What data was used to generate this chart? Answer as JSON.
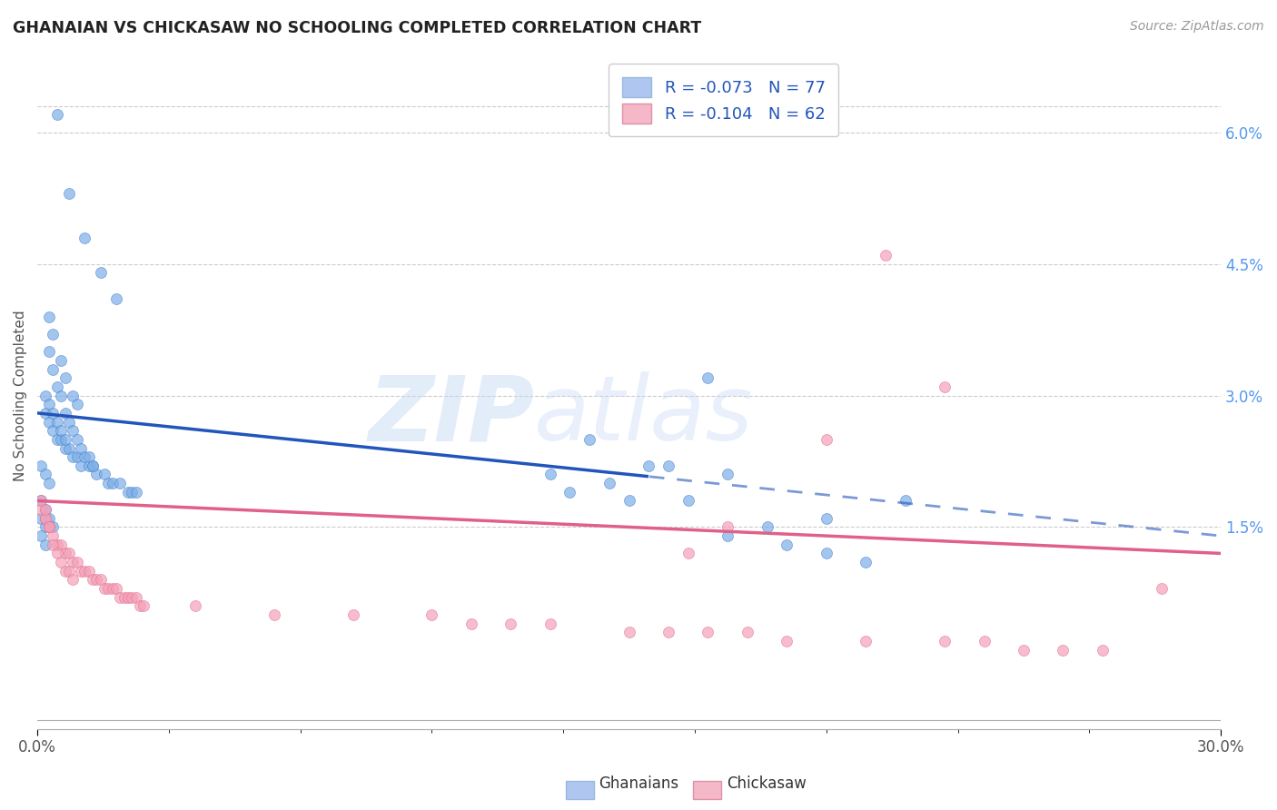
{
  "title": "GHANAIAN VS CHICKASAW NO SCHOOLING COMPLETED CORRELATION CHART",
  "source": "Source: ZipAtlas.com",
  "ylabel": "No Schooling Completed",
  "right_yticks": [
    "6.0%",
    "4.5%",
    "3.0%",
    "1.5%"
  ],
  "right_ytick_vals": [
    0.06,
    0.045,
    0.03,
    0.015
  ],
  "xmin": 0.0,
  "xmax": 0.3,
  "ymin": -0.008,
  "ymax": 0.068,
  "blue_line_start_y": 0.028,
  "blue_line_end_y": 0.014,
  "blue_line_solid_xmax": 0.155,
  "pink_line_start_y": 0.018,
  "pink_line_end_y": 0.012,
  "legend_label_blue": "R = -0.073   N = 77",
  "legend_label_pink": "R = -0.104   N = 62",
  "legend_label_blue_short": "R = -0.073",
  "legend_label_pink_short": "R = -0.104",
  "legend_N_blue": "N = 77",
  "legend_N_pink": "N = 62",
  "blue_color": "#7baee8",
  "blue_edge_color": "#4a80cc",
  "pink_color": "#f4a0b8",
  "pink_edge_color": "#e07090",
  "blue_line_color": "#2255bb",
  "pink_line_color": "#e0608a",
  "blue_patch_color": "#aec6f0",
  "pink_patch_color": "#f4b8c8",
  "scatter_alpha": 0.7,
  "scatter_size": 75,
  "background_color": "#ffffff",
  "grid_color": "#cccccc",
  "watermark_zip": "ZIP",
  "watermark_atlas": "atlas",
  "blue_scatter_x": [
    0.005,
    0.008,
    0.012,
    0.016,
    0.02,
    0.003,
    0.004,
    0.006,
    0.007,
    0.009,
    0.01,
    0.002,
    0.003,
    0.004,
    0.005,
    0.006,
    0.007,
    0.008,
    0.009,
    0.01,
    0.011,
    0.013,
    0.014,
    0.015,
    0.017,
    0.018,
    0.019,
    0.021,
    0.023,
    0.024,
    0.025,
    0.003,
    0.004,
    0.005,
    0.006,
    0.007,
    0.008,
    0.009,
    0.01,
    0.011,
    0.012,
    0.013,
    0.014,
    0.002,
    0.003,
    0.004,
    0.005,
    0.006,
    0.007,
    0.001,
    0.002,
    0.003,
    0.001,
    0.002,
    0.003,
    0.004,
    0.001,
    0.002,
    0.001,
    0.002,
    0.17,
    0.14,
    0.155,
    0.13,
    0.145,
    0.16,
    0.135,
    0.15,
    0.165,
    0.175,
    0.22,
    0.2,
    0.185,
    0.175,
    0.19,
    0.2,
    0.21
  ],
  "blue_scatter_y": [
    0.062,
    0.053,
    0.048,
    0.044,
    0.041,
    0.039,
    0.037,
    0.034,
    0.032,
    0.03,
    0.029,
    0.028,
    0.027,
    0.026,
    0.025,
    0.025,
    0.024,
    0.024,
    0.023,
    0.023,
    0.022,
    0.022,
    0.022,
    0.021,
    0.021,
    0.02,
    0.02,
    0.02,
    0.019,
    0.019,
    0.019,
    0.035,
    0.033,
    0.031,
    0.03,
    0.028,
    0.027,
    0.026,
    0.025,
    0.024,
    0.023,
    0.023,
    0.022,
    0.03,
    0.029,
    0.028,
    0.027,
    0.026,
    0.025,
    0.022,
    0.021,
    0.02,
    0.018,
    0.017,
    0.016,
    0.015,
    0.016,
    0.015,
    0.014,
    0.013,
    0.032,
    0.025,
    0.022,
    0.021,
    0.02,
    0.022,
    0.019,
    0.018,
    0.018,
    0.021,
    0.018,
    0.016,
    0.015,
    0.014,
    0.013,
    0.012,
    0.011
  ],
  "pink_scatter_x": [
    0.001,
    0.002,
    0.003,
    0.004,
    0.005,
    0.006,
    0.007,
    0.008,
    0.009,
    0.01,
    0.011,
    0.012,
    0.013,
    0.014,
    0.015,
    0.016,
    0.017,
    0.018,
    0.019,
    0.02,
    0.021,
    0.022,
    0.023,
    0.024,
    0.025,
    0.026,
    0.027,
    0.002,
    0.003,
    0.004,
    0.005,
    0.006,
    0.007,
    0.008,
    0.009,
    0.001,
    0.002,
    0.003,
    0.04,
    0.06,
    0.08,
    0.1,
    0.11,
    0.12,
    0.13,
    0.15,
    0.16,
    0.17,
    0.18,
    0.19,
    0.21,
    0.23,
    0.24,
    0.25,
    0.26,
    0.27,
    0.23,
    0.215,
    0.2,
    0.285,
    0.175,
    0.165
  ],
  "pink_scatter_y": [
    0.017,
    0.016,
    0.015,
    0.014,
    0.013,
    0.013,
    0.012,
    0.012,
    0.011,
    0.011,
    0.01,
    0.01,
    0.01,
    0.009,
    0.009,
    0.009,
    0.008,
    0.008,
    0.008,
    0.008,
    0.007,
    0.007,
    0.007,
    0.007,
    0.007,
    0.006,
    0.006,
    0.016,
    0.015,
    0.013,
    0.012,
    0.011,
    0.01,
    0.01,
    0.009,
    0.018,
    0.017,
    0.015,
    0.006,
    0.005,
    0.005,
    0.005,
    0.004,
    0.004,
    0.004,
    0.003,
    0.003,
    0.003,
    0.003,
    0.002,
    0.002,
    0.002,
    0.002,
    0.001,
    0.001,
    0.001,
    0.031,
    0.046,
    0.025,
    0.008,
    0.015,
    0.012
  ]
}
